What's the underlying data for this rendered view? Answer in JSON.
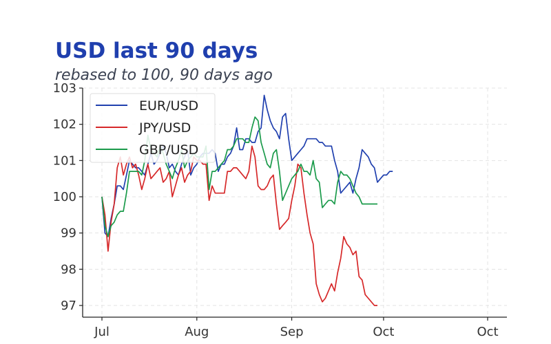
{
  "title": "USD last 90 days",
  "subtitle": "rebased to 100, 90 days ago",
  "chart_data": {
    "type": "line",
    "xlabel": "",
    "ylabel": "",
    "ylim": [
      96.7,
      103.0
    ],
    "yticks": [
      97,
      98,
      99,
      100,
      101,
      102,
      103
    ],
    "xticks": [
      {
        "label": "Jul",
        "day": 0
      },
      {
        "label": "Aug",
        "day": 31
      },
      {
        "label": "Sep",
        "day": 62
      },
      {
        "label": "Oct",
        "day": 92
      },
      {
        "label": "Oct",
        "day": 126
      }
    ],
    "xlim": [
      -6,
      132
    ],
    "grid": true,
    "legend_position": "top-left",
    "series": [
      {
        "name": "EUR/USD",
        "color": "#1f3fae",
        "points": [
          [
            0,
            100.0
          ],
          [
            1,
            99.0
          ],
          [
            2,
            98.9
          ],
          [
            3,
            99.4
          ],
          [
            4,
            99.8
          ],
          [
            5,
            100.3
          ],
          [
            6,
            100.3
          ],
          [
            7,
            100.2
          ],
          [
            8,
            100.6
          ],
          [
            9,
            101.0
          ],
          [
            10,
            100.9
          ],
          [
            11,
            100.8
          ],
          [
            12,
            100.8
          ],
          [
            13,
            100.7
          ],
          [
            14,
            100.6
          ],
          [
            15,
            100.9
          ],
          [
            16,
            101.2
          ],
          [
            17,
            100.9
          ],
          [
            18,
            101.0
          ],
          [
            19,
            101.2
          ],
          [
            20,
            101.4
          ],
          [
            21,
            101.2
          ],
          [
            22,
            100.8
          ],
          [
            23,
            100.9
          ],
          [
            24,
            100.7
          ],
          [
            25,
            100.6
          ],
          [
            26,
            100.9
          ],
          [
            27,
            101.1
          ],
          [
            28,
            101.3
          ],
          [
            29,
            100.6
          ],
          [
            30,
            100.8
          ],
          [
            31,
            100.9
          ],
          [
            32,
            101.1
          ],
          [
            33,
            101.2
          ],
          [
            34,
            101.2
          ],
          [
            35,
            101.2
          ],
          [
            36,
            101.3
          ],
          [
            37,
            101.2
          ],
          [
            38,
            100.7
          ],
          [
            39,
            100.9
          ],
          [
            40,
            100.9
          ],
          [
            41,
            101.1
          ],
          [
            42,
            101.2
          ],
          [
            43,
            101.4
          ],
          [
            44,
            101.9
          ],
          [
            45,
            101.3
          ],
          [
            46,
            101.3
          ],
          [
            47,
            101.6
          ],
          [
            48,
            101.6
          ],
          [
            49,
            101.5
          ],
          [
            50,
            101.5
          ],
          [
            51,
            101.8
          ],
          [
            52,
            101.9
          ],
          [
            53,
            102.8
          ],
          [
            54,
            102.4
          ],
          [
            55,
            102.1
          ],
          [
            56,
            101.9
          ],
          [
            57,
            101.8
          ],
          [
            58,
            101.6
          ],
          [
            59,
            102.2
          ],
          [
            60,
            102.3
          ],
          [
            61,
            101.6
          ],
          [
            62,
            101.0
          ],
          [
            63,
            101.1
          ],
          [
            64,
            101.2
          ],
          [
            65,
            101.3
          ],
          [
            66,
            101.4
          ],
          [
            67,
            101.6
          ],
          [
            68,
            101.6
          ],
          [
            69,
            101.6
          ],
          [
            70,
            101.6
          ],
          [
            71,
            101.5
          ],
          [
            72,
            101.5
          ],
          [
            73,
            101.4
          ],
          [
            74,
            101.4
          ],
          [
            75,
            101.4
          ],
          [
            76,
            101.0
          ],
          [
            77,
            100.7
          ],
          [
            78,
            100.1
          ],
          [
            79,
            100.2
          ],
          [
            80,
            100.3
          ],
          [
            81,
            100.4
          ],
          [
            82,
            100.1
          ],
          [
            83,
            100.5
          ],
          [
            84,
            100.8
          ],
          [
            85,
            101.3
          ],
          [
            86,
            101.2
          ],
          [
            87,
            101.1
          ],
          [
            88,
            100.9
          ],
          [
            89,
            100.8
          ],
          [
            90,
            100.4
          ],
          [
            91,
            100.5
          ],
          [
            92,
            100.6
          ],
          [
            93,
            100.6
          ],
          [
            94,
            100.7
          ],
          [
            95,
            100.7
          ]
        ]
      },
      {
        "name": "JPY/USD",
        "color": "#d62728",
        "points": [
          [
            0,
            100.0
          ],
          [
            1,
            99.5
          ],
          [
            2,
            98.5
          ],
          [
            3,
            99.3
          ],
          [
            4,
            99.8
          ],
          [
            5,
            100.8
          ],
          [
            6,
            101.1
          ],
          [
            7,
            100.6
          ],
          [
            8,
            100.9
          ],
          [
            9,
            101.1
          ],
          [
            10,
            100.8
          ],
          [
            11,
            100.9
          ],
          [
            12,
            100.6
          ],
          [
            13,
            100.2
          ],
          [
            14,
            100.5
          ],
          [
            15,
            100.9
          ],
          [
            16,
            100.5
          ],
          [
            17,
            100.6
          ],
          [
            18,
            100.7
          ],
          [
            19,
            100.8
          ],
          [
            20,
            100.4
          ],
          [
            21,
            100.5
          ],
          [
            22,
            100.7
          ],
          [
            23,
            100.0
          ],
          [
            24,
            100.3
          ],
          [
            25,
            100.6
          ],
          [
            26,
            100.8
          ],
          [
            27,
            100.4
          ],
          [
            28,
            100.6
          ],
          [
            29,
            100.7
          ],
          [
            30,
            101.1
          ],
          [
            31,
            101.0
          ],
          [
            32,
            101.0
          ],
          [
            33,
            100.9
          ],
          [
            34,
            100.9
          ],
          [
            35,
            99.9
          ],
          [
            36,
            100.3
          ],
          [
            37,
            100.1
          ],
          [
            38,
            100.1
          ],
          [
            39,
            100.1
          ],
          [
            40,
            100.1
          ],
          [
            41,
            100.7
          ],
          [
            42,
            100.7
          ],
          [
            43,
            100.8
          ],
          [
            44,
            100.8
          ],
          [
            45,
            100.7
          ],
          [
            46,
            100.6
          ],
          [
            47,
            100.5
          ],
          [
            48,
            100.7
          ],
          [
            49,
            101.4
          ],
          [
            50,
            101.1
          ],
          [
            51,
            100.3
          ],
          [
            52,
            100.2
          ],
          [
            53,
            100.2
          ],
          [
            54,
            100.3
          ],
          [
            55,
            100.5
          ],
          [
            56,
            100.6
          ],
          [
            57,
            99.8
          ],
          [
            58,
            99.1
          ],
          [
            59,
            99.2
          ],
          [
            60,
            99.3
          ],
          [
            61,
            99.4
          ],
          [
            62,
            99.9
          ],
          [
            63,
            100.3
          ],
          [
            64,
            100.9
          ],
          [
            65,
            100.8
          ],
          [
            66,
            100.1
          ],
          [
            67,
            99.5
          ],
          [
            68,
            99.0
          ],
          [
            69,
            98.7
          ],
          [
            70,
            97.6
          ],
          [
            71,
            97.3
          ],
          [
            72,
            97.1
          ],
          [
            73,
            97.2
          ],
          [
            74,
            97.4
          ],
          [
            75,
            97.6
          ],
          [
            76,
            97.4
          ],
          [
            77,
            97.9
          ],
          [
            78,
            98.3
          ],
          [
            79,
            98.9
          ],
          [
            80,
            98.7
          ],
          [
            81,
            98.6
          ],
          [
            82,
            98.4
          ],
          [
            83,
            98.5
          ],
          [
            84,
            97.8
          ],
          [
            85,
            97.7
          ],
          [
            86,
            97.3
          ],
          [
            87,
            97.2
          ],
          [
            88,
            97.1
          ],
          [
            89,
            97.0
          ],
          [
            90,
            97.0
          ]
        ]
      },
      {
        "name": "GBP/USD",
        "color": "#1a9a4a",
        "points": [
          [
            0,
            100.0
          ],
          [
            1,
            99.2
          ],
          [
            2,
            98.9
          ],
          [
            3,
            99.2
          ],
          [
            4,
            99.3
          ],
          [
            5,
            99.5
          ],
          [
            6,
            99.6
          ],
          [
            7,
            99.6
          ],
          [
            8,
            100.1
          ],
          [
            9,
            100.7
          ],
          [
            10,
            100.7
          ],
          [
            11,
            100.7
          ],
          [
            12,
            100.7
          ],
          [
            13,
            100.6
          ],
          [
            14,
            101.0
          ],
          [
            15,
            101.7
          ],
          [
            16,
            101.3
          ],
          [
            17,
            101.2
          ],
          [
            18,
            101.1
          ],
          [
            19,
            101.4
          ],
          [
            20,
            101.2
          ],
          [
            21,
            100.9
          ],
          [
            22,
            100.7
          ],
          [
            23,
            100.5
          ],
          [
            24,
            100.8
          ],
          [
            25,
            101.0
          ],
          [
            26,
            101.3
          ],
          [
            27,
            100.8
          ],
          [
            28,
            101.0
          ],
          [
            29,
            101.1
          ],
          [
            30,
            101.2
          ],
          [
            31,
            101.1
          ],
          [
            32,
            101.1
          ],
          [
            33,
            101.1
          ],
          [
            34,
            101.4
          ],
          [
            35,
            100.2
          ],
          [
            36,
            100.7
          ],
          [
            37,
            100.7
          ],
          [
            38,
            100.8
          ],
          [
            39,
            100.9
          ],
          [
            40,
            101.0
          ],
          [
            41,
            101.3
          ],
          [
            42,
            101.3
          ],
          [
            43,
            101.4
          ],
          [
            44,
            101.6
          ],
          [
            45,
            101.6
          ],
          [
            46,
            101.6
          ],
          [
            47,
            101.5
          ],
          [
            48,
            101.5
          ],
          [
            49,
            101.9
          ],
          [
            50,
            102.2
          ],
          [
            51,
            102.1
          ],
          [
            52,
            101.5
          ],
          [
            53,
            101.2
          ],
          [
            54,
            100.9
          ],
          [
            55,
            100.8
          ],
          [
            56,
            101.2
          ],
          [
            57,
            101.3
          ],
          [
            58,
            100.7
          ],
          [
            59,
            99.9
          ],
          [
            60,
            100.1
          ],
          [
            61,
            100.3
          ],
          [
            62,
            100.5
          ],
          [
            63,
            100.6
          ],
          [
            64,
            100.7
          ],
          [
            65,
            100.9
          ],
          [
            66,
            100.7
          ],
          [
            67,
            100.7
          ],
          [
            68,
            100.6
          ],
          [
            69,
            101.0
          ],
          [
            70,
            100.5
          ],
          [
            71,
            100.4
          ],
          [
            72,
            99.7
          ],
          [
            73,
            99.8
          ],
          [
            74,
            99.9
          ],
          [
            75,
            99.9
          ],
          [
            76,
            99.8
          ],
          [
            77,
            100.4
          ],
          [
            78,
            100.7
          ],
          [
            79,
            100.6
          ],
          [
            80,
            100.6
          ],
          [
            81,
            100.5
          ],
          [
            82,
            100.3
          ],
          [
            83,
            100.1
          ],
          [
            84,
            100.0
          ],
          [
            85,
            99.8
          ],
          [
            86,
            99.8
          ],
          [
            87,
            99.8
          ],
          [
            88,
            99.8
          ],
          [
            89,
            99.8
          ],
          [
            90,
            99.8
          ]
        ]
      }
    ]
  }
}
